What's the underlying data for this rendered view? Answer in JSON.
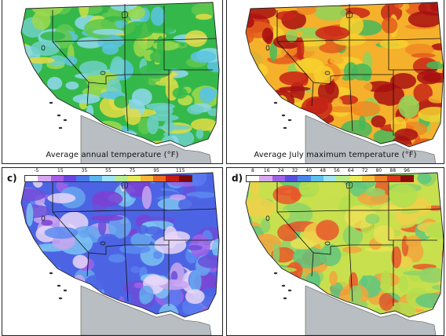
{
  "panels": {
    "a": {
      "letter": "",
      "caption": "Average annual temperature (°F)",
      "palette": [
        "#35b84a",
        "#62c84e",
        "#9ed84d",
        "#c8e04b",
        "#e3dc44",
        "#6fd0c8",
        "#5cc3e2",
        "#8fd8ef"
      ]
    },
    "b": {
      "letter": "",
      "caption": "Average July maximum temperature (°F)",
      "palette": [
        "#f5b12c",
        "#f08a22",
        "#e35c1c",
        "#c82617",
        "#a80f12",
        "#f7d12e",
        "#8fd35a",
        "#47b95a"
      ]
    },
    "c": {
      "letter": "c)",
      "colorbar_ticks": [
        "-5",
        "15",
        "35",
        "55",
        "75",
        "95",
        "115"
      ],
      "colorbar_colors": [
        "#ffffff",
        "#d5a8f0",
        "#a55ce6",
        "#6a46de",
        "#4a78e8",
        "#5db4ef",
        "#9fe3f6",
        "#b8ed92",
        "#e7ec5b",
        "#f7b83a",
        "#ec6a21",
        "#c41c14",
        "#7a0a0a"
      ],
      "palette": [
        "#4c64e4",
        "#5a7af0",
        "#6a4fd8",
        "#7b3fd4",
        "#9e63e8",
        "#c9a5f0",
        "#e8d6f8",
        "#66a6ee",
        "#7bc3f2",
        "#5b8bf0"
      ]
    },
    "d": {
      "letter": "d)",
      "colorbar_ticks": [
        "8",
        "16",
        "24",
        "32",
        "40",
        "48",
        "56",
        "64",
        "72",
        "80",
        "88",
        "96"
      ],
      "colorbar_colors": [
        "#ffffff",
        "#d7a9ef",
        "#9e62e4",
        "#5a4ede",
        "#4a86ea",
        "#5cc3ef",
        "#9fe4ee",
        "#b9eb86",
        "#e6ec5a",
        "#f7c13c",
        "#ee7f28",
        "#d7361c",
        "#8c0c0c"
      ],
      "palette": [
        "#c8e04e",
        "#b5de4e",
        "#e9e055",
        "#f0cf4a",
        "#8dd26a",
        "#f2a53c",
        "#e8572a",
        "#62c77e"
      ]
    }
  }
}
